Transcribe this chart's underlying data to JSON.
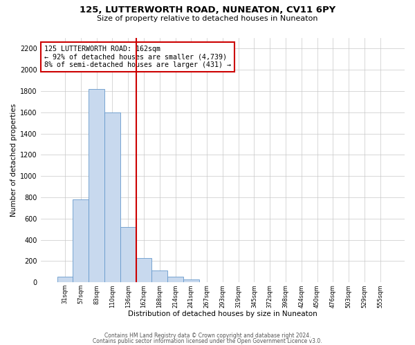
{
  "title": "125, LUTTERWORTH ROAD, NUNEATON, CV11 6PY",
  "subtitle": "Size of property relative to detached houses in Nuneaton",
  "xlabel": "Distribution of detached houses by size in Nuneaton",
  "ylabel": "Number of detached properties",
  "bar_color": "#c8d9ee",
  "bar_edge_color": "#6699cc",
  "bin_labels": [
    "31sqm",
    "57sqm",
    "83sqm",
    "110sqm",
    "136sqm",
    "162sqm",
    "188sqm",
    "214sqm",
    "241sqm",
    "267sqm",
    "293sqm",
    "319sqm",
    "345sqm",
    "372sqm",
    "398sqm",
    "424sqm",
    "450sqm",
    "476sqm",
    "503sqm",
    "529sqm",
    "555sqm"
  ],
  "bar_heights": [
    50,
    780,
    1820,
    1600,
    520,
    230,
    110,
    55,
    25,
    0,
    0,
    0,
    0,
    0,
    0,
    0,
    0,
    0,
    0,
    0,
    0
  ],
  "property_line_x": 4.5,
  "property_line_color": "#cc0000",
  "annotation_line1": "125 LUTTERWORTH ROAD: 162sqm",
  "annotation_line2": "← 92% of detached houses are smaller (4,739)",
  "annotation_line3": "8% of semi-detached houses are larger (431) →",
  "annotation_box_color": "#cc0000",
  "ylim": [
    0,
    2300
  ],
  "yticks": [
    0,
    200,
    400,
    600,
    800,
    1000,
    1200,
    1400,
    1600,
    1800,
    2000,
    2200
  ],
  "footer_line1": "Contains HM Land Registry data © Crown copyright and database right 2024.",
  "footer_line2": "Contains public sector information licensed under the Open Government Licence v3.0.",
  "background_color": "#ffffff",
  "grid_color": "#c8c8c8",
  "figsize": [
    6.0,
    5.0
  ],
  "dpi": 100
}
